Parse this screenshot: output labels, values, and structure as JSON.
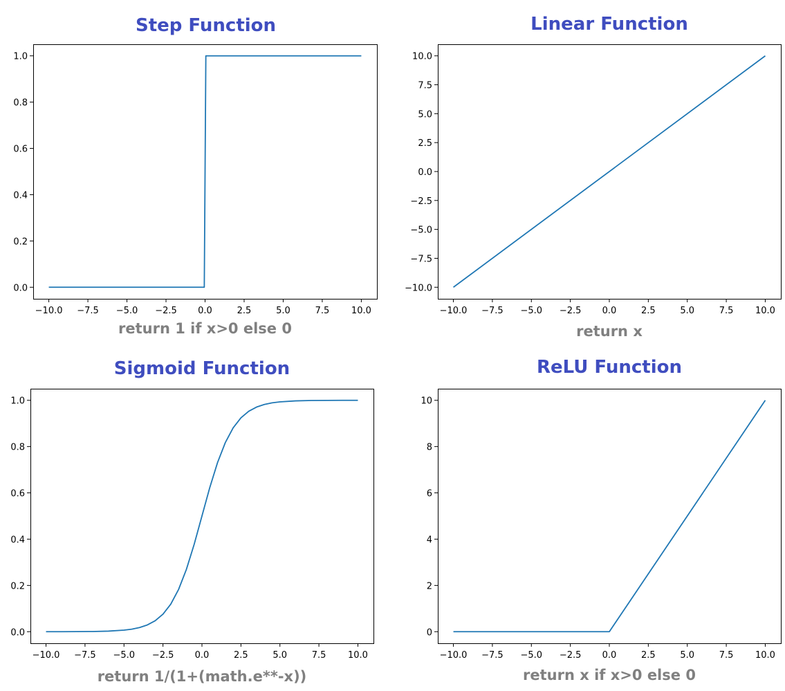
{
  "theme": {
    "title_color": "#3f4dbf",
    "xlabel_color": "#808080",
    "line_color": "#1f77b4"
  },
  "chart_data": [
    {
      "type": "line",
      "title": "Step Function",
      "xlabel": "return 1 if x>0 else 0",
      "ylabel": "",
      "xlim": [
        -11.0,
        11.0
      ],
      "ylim": [
        -0.05,
        1.05
      ],
      "xticks": [
        -10.0,
        -7.5,
        -5.0,
        -2.5,
        0.0,
        2.5,
        5.0,
        7.5,
        10.0
      ],
      "xtick_labels": [
        "−10.0",
        "−7.5",
        "−5.0",
        "−2.5",
        "0.0",
        "2.5",
        "5.0",
        "7.5",
        "10.0"
      ],
      "yticks": [
        0.0,
        0.2,
        0.4,
        0.6,
        0.8,
        1.0
      ],
      "ytick_labels": [
        "0.0",
        "0.2",
        "0.4",
        "0.6",
        "0.8",
        "1.0"
      ],
      "grid": false,
      "series": [
        {
          "x": [
            -10.0,
            -0.05,
            0.05,
            10.0
          ],
          "y": [
            0,
            0,
            1,
            1
          ]
        }
      ]
    },
    {
      "type": "line",
      "title": "Linear Function",
      "xlabel": "return x",
      "ylabel": "",
      "xlim": [
        -11.0,
        11.0
      ],
      "ylim": [
        -11.0,
        11.0
      ],
      "xticks": [
        -10.0,
        -7.5,
        -5.0,
        -2.5,
        0.0,
        2.5,
        5.0,
        7.5,
        10.0
      ],
      "xtick_labels": [
        "−10.0",
        "−7.5",
        "−5.0",
        "−2.5",
        "0.0",
        "2.5",
        "5.0",
        "7.5",
        "10.0"
      ],
      "yticks": [
        10.0,
        7.5,
        5.0,
        2.5,
        0.0,
        -2.5,
        -5.0,
        -7.5,
        -10.0
      ],
      "ytick_labels": [
        "10.0",
        "7.5",
        "5.0",
        "2.5",
        "0.0",
        "−2.5",
        "−5.0",
        "−7.5",
        "−10.0"
      ],
      "grid": false,
      "series": [
        {
          "x": [
            -10.0,
            10.0
          ],
          "y": [
            -10.0,
            10.0
          ]
        }
      ]
    },
    {
      "type": "line",
      "title": "Sigmoid Function",
      "xlabel": "return 1/(1+(math.e**-x))",
      "ylabel": "",
      "xlim": [
        -11.0,
        11.0
      ],
      "ylim": [
        -0.05,
        1.05
      ],
      "xticks": [
        -10.0,
        -7.5,
        -5.0,
        -2.5,
        0.0,
        2.5,
        5.0,
        7.5,
        10.0
      ],
      "xtick_labels": [
        "−10.0",
        "−7.5",
        "−5.0",
        "−2.5",
        "0.0",
        "2.5",
        "5.0",
        "7.5",
        "10.0"
      ],
      "yticks": [
        0.0,
        0.2,
        0.4,
        0.6,
        0.8,
        1.0
      ],
      "ytick_labels": [
        "0.0",
        "0.2",
        "0.4",
        "0.6",
        "0.8",
        "1.0"
      ],
      "grid": false,
      "series": [
        {
          "x": [
            -10.0,
            -9.0,
            -8.0,
            -7.0,
            -6.0,
            -5.0,
            -4.5,
            -4.0,
            -3.5,
            -3.0,
            -2.5,
            -2.0,
            -1.5,
            -1.0,
            -0.5,
            0.0,
            0.5,
            1.0,
            1.5,
            2.0,
            2.5,
            3.0,
            3.5,
            4.0,
            4.5,
            5.0,
            6.0,
            7.0,
            8.0,
            9.0,
            10.0
          ],
          "y": [
            5e-05,
            0.00012,
            0.00034,
            0.00091,
            0.00247,
            0.00669,
            0.01099,
            0.01799,
            0.02931,
            0.04743,
            0.07586,
            0.1192,
            0.18243,
            0.26894,
            0.37754,
            0.5,
            0.62246,
            0.73106,
            0.81757,
            0.8808,
            0.92414,
            0.95257,
            0.97069,
            0.98201,
            0.98901,
            0.99331,
            0.99753,
            0.99909,
            0.99966,
            0.99988,
            0.99995
          ]
        }
      ]
    },
    {
      "type": "line",
      "title": "ReLU Function",
      "xlabel": "return x if x>0 else 0",
      "ylabel": "",
      "xlim": [
        -11.0,
        11.0
      ],
      "ylim": [
        -0.5,
        10.5
      ],
      "xticks": [
        -10.0,
        -7.5,
        -5.0,
        -2.5,
        0.0,
        2.5,
        5.0,
        7.5,
        10.0
      ],
      "xtick_labels": [
        "−10.0",
        "−7.5",
        "−5.0",
        "−2.5",
        "0.0",
        "2.5",
        "5.0",
        "7.5",
        "10.0"
      ],
      "yticks": [
        0,
        2,
        4,
        6,
        8,
        10
      ],
      "ytick_labels": [
        "0",
        "2",
        "4",
        "6",
        "8",
        "10"
      ],
      "grid": false,
      "series": [
        {
          "x": [
            -10.0,
            0.0,
            10.0
          ],
          "y": [
            0,
            0,
            10
          ]
        }
      ]
    }
  ]
}
